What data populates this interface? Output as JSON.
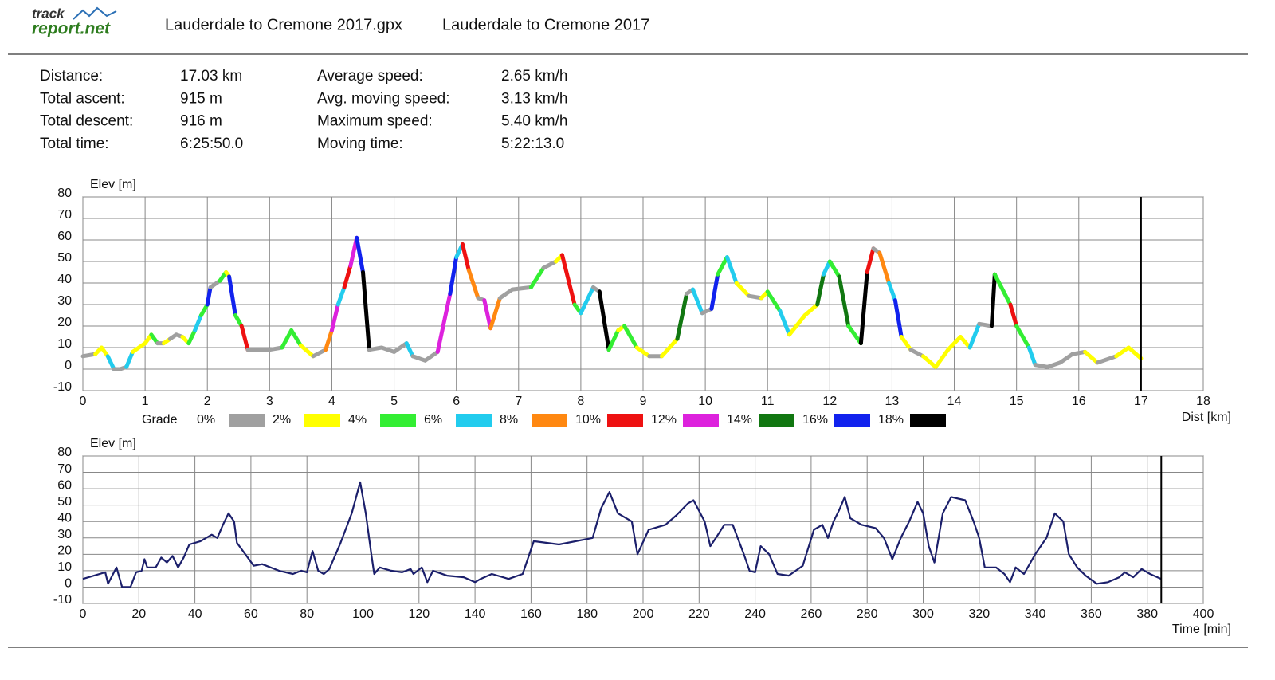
{
  "header": {
    "logo_top": "track",
    "logo_bottom": "report.net",
    "file_name": "Lauderdale to Cremone 2017.gpx",
    "track_name": "Lauderdale to Cremone 2017"
  },
  "stats": [
    [
      {
        "label": "Distance:",
        "value": "17.03 km"
      },
      {
        "label": "Total ascent:",
        "value": "915 m"
      },
      {
        "label": "Total descent:",
        "value": "916 m"
      },
      {
        "label": "Total time:",
        "value": "6:25:50.0"
      }
    ],
    [
      {
        "label": "Average speed:",
        "value": "2.65 km/h"
      },
      {
        "label": "Avg. moving speed:",
        "value": "3.13 km/h"
      },
      {
        "label": "Maximum speed:",
        "value": "5.40 km/h"
      },
      {
        "label": "Moving time:",
        "value": "5:22:13.0"
      }
    ]
  ],
  "chart_data": [
    {
      "type": "line",
      "y_label": "Elev [m]",
      "x_label": "Dist [km]",
      "color_by": "grade",
      "legend_title": "Grade",
      "grade_legend": [
        {
          "value": 0,
          "label": "0%",
          "color": "#a0a0a0"
        },
        {
          "value": 2,
          "label": "2%",
          "color": "#ffff00"
        },
        {
          "value": 4,
          "label": "4%",
          "color": "#33ee33"
        },
        {
          "value": 6,
          "label": "6%",
          "color": "#22ccee"
        },
        {
          "value": 8,
          "label": "8%",
          "color": "#ff8811"
        },
        {
          "value": 10,
          "label": "10%",
          "color": "#ee1111"
        },
        {
          "value": 12,
          "label": "12%",
          "color": "#dd22dd"
        },
        {
          "value": 14,
          "label": "14%",
          "color": "#117711"
        },
        {
          "value": 16,
          "label": "16%",
          "color": "#1122ee"
        },
        {
          "value": 18,
          "label": "18%",
          "color": "#000000"
        }
      ],
      "x": [
        0,
        0.2,
        0.3,
        0.4,
        0.5,
        0.6,
        0.7,
        0.8,
        0.9,
        1.0,
        1.1,
        1.2,
        1.3,
        1.4,
        1.5,
        1.6,
        1.7,
        1.8,
        1.9,
        2.0,
        2.05,
        2.2,
        2.3,
        2.35,
        2.45,
        2.55,
        2.65,
        2.8,
        3.0,
        3.2,
        3.35,
        3.5,
        3.7,
        3.9,
        4.0,
        4.1,
        4.2,
        4.3,
        4.4,
        4.5,
        4.6,
        4.8,
        5.0,
        5.2,
        5.3,
        5.5,
        5.7,
        5.9,
        6.0,
        6.1,
        6.2,
        6.35,
        6.45,
        6.55,
        6.7,
        6.9,
        7.2,
        7.4,
        7.6,
        7.7,
        7.9,
        8.0,
        8.2,
        8.3,
        8.45,
        8.6,
        8.7,
        8.9,
        9.1,
        9.3,
        9.55,
        9.7,
        9.8,
        9.95,
        10.1,
        10.2,
        10.35,
        10.5,
        10.7,
        10.9,
        11.0,
        11.2,
        11.35,
        11.6,
        11.8,
        11.9,
        12.0,
        12.15,
        12.3,
        12.5,
        12.6,
        12.7,
        12.8,
        12.95,
        13.05,
        13.15,
        13.3,
        13.5,
        13.7,
        13.9,
        14.1,
        14.25,
        14.4,
        14.6,
        14.65,
        14.9,
        15.0,
        15.2,
        15.3,
        15.5,
        15.7,
        15.9,
        16.1,
        16.3,
        16.6,
        16.8,
        17.0
      ],
      "values": [
        6,
        7,
        10,
        6,
        0,
        0,
        1,
        8,
        10,
        12,
        16,
        12,
        12,
        14,
        16,
        15,
        12,
        18,
        25,
        30,
        38,
        41,
        45,
        43,
        25,
        20,
        9,
        9,
        9,
        10,
        18,
        11,
        6,
        9,
        18,
        30,
        38,
        48,
        61,
        45,
        9,
        10,
        8,
        12,
        6,
        4,
        8,
        35,
        52,
        58,
        46,
        33,
        32,
        19,
        33,
        37,
        38,
        47,
        50,
        53,
        30,
        26,
        38,
        36,
        9,
        18,
        20,
        10,
        6,
        6,
        14,
        35,
        37,
        26,
        28,
        44,
        52,
        40,
        34,
        33,
        36,
        27,
        16,
        25,
        30,
        44,
        50,
        43,
        20,
        12,
        45,
        56,
        54,
        40,
        32,
        15,
        9,
        6,
        1,
        9,
        15,
        10,
        21,
        20,
        44,
        30,
        20,
        10,
        2,
        1,
        3,
        7,
        8,
        3,
        6,
        10,
        5
      ],
      "xlim": [
        0,
        18
      ],
      "ylim": [
        -10,
        80
      ],
      "xticks": [
        0,
        1,
        2,
        3,
        4,
        5,
        6,
        7,
        8,
        9,
        10,
        11,
        12,
        13,
        14,
        15,
        16,
        17,
        18
      ],
      "yticks": [
        -10,
        0,
        10,
        20,
        30,
        40,
        50,
        60,
        70,
        80
      ],
      "grid": true
    },
    {
      "type": "line",
      "y_label": "Elev [m]",
      "x_label": "Time [min]",
      "color": "#1b1f6b",
      "x": [
        0,
        8,
        9,
        12,
        14,
        17,
        19,
        21,
        22,
        23,
        26,
        28,
        30,
        32,
        34,
        36,
        38,
        42,
        46,
        48,
        50,
        52,
        54,
        55,
        58,
        61,
        64,
        70,
        75,
        78,
        80,
        82,
        84,
        86,
        88,
        92,
        96,
        99,
        101,
        103,
        104,
        106,
        110,
        114,
        117,
        118,
        121,
        123,
        125,
        130,
        136,
        140,
        142,
        146,
        152,
        157,
        161,
        170,
        182,
        185,
        188,
        191,
        196,
        198,
        202,
        208,
        212,
        216,
        218,
        222,
        224,
        226,
        229,
        232,
        236,
        238,
        240,
        242,
        245,
        248,
        252,
        257,
        261,
        264,
        266,
        268,
        270,
        272,
        274,
        278,
        283,
        286,
        289,
        292,
        295,
        298,
        300,
        302,
        304,
        307,
        310,
        315,
        318,
        320,
        322,
        326,
        329,
        331,
        333,
        336,
        340,
        344,
        347,
        350,
        352,
        355,
        358,
        362,
        366,
        370,
        372,
        375,
        378,
        381,
        385
      ],
      "values": [
        5,
        9,
        2,
        12,
        0,
        0,
        9,
        10,
        17,
        12,
        12,
        18,
        15,
        19,
        12,
        18,
        26,
        28,
        32,
        30,
        38,
        45,
        40,
        27,
        20,
        13,
        14,
        10,
        8,
        10,
        9,
        22,
        10,
        8,
        11,
        27,
        45,
        64,
        45,
        20,
        8,
        12,
        10,
        9,
        11,
        8,
        12,
        3,
        10,
        7,
        6,
        3,
        5,
        8,
        5,
        8,
        28,
        26,
        30,
        48,
        58,
        45,
        40,
        20,
        35,
        38,
        44,
        51,
        53,
        40,
        25,
        30,
        38,
        38,
        20,
        10,
        9,
        25,
        20,
        8,
        7,
        13,
        35,
        38,
        30,
        40,
        47,
        55,
        42,
        38,
        36,
        30,
        17,
        30,
        40,
        52,
        45,
        25,
        15,
        45,
        55,
        53,
        40,
        30,
        12,
        12,
        8,
        3,
        12,
        8,
        20,
        30,
        45,
        40,
        20,
        12,
        7,
        2,
        3,
        6,
        9,
        6,
        11,
        8,
        5
      ],
      "xlim": [
        0,
        400
      ],
      "ylim": [
        -10,
        80
      ],
      "xticks": [
        0,
        20,
        40,
        60,
        80,
        100,
        120,
        140,
        160,
        180,
        200,
        220,
        240,
        260,
        280,
        300,
        320,
        340,
        360,
        380,
        400
      ],
      "yticks": [
        -10,
        0,
        10,
        20,
        30,
        40,
        50,
        60,
        70,
        80
      ],
      "grid": true
    }
  ]
}
